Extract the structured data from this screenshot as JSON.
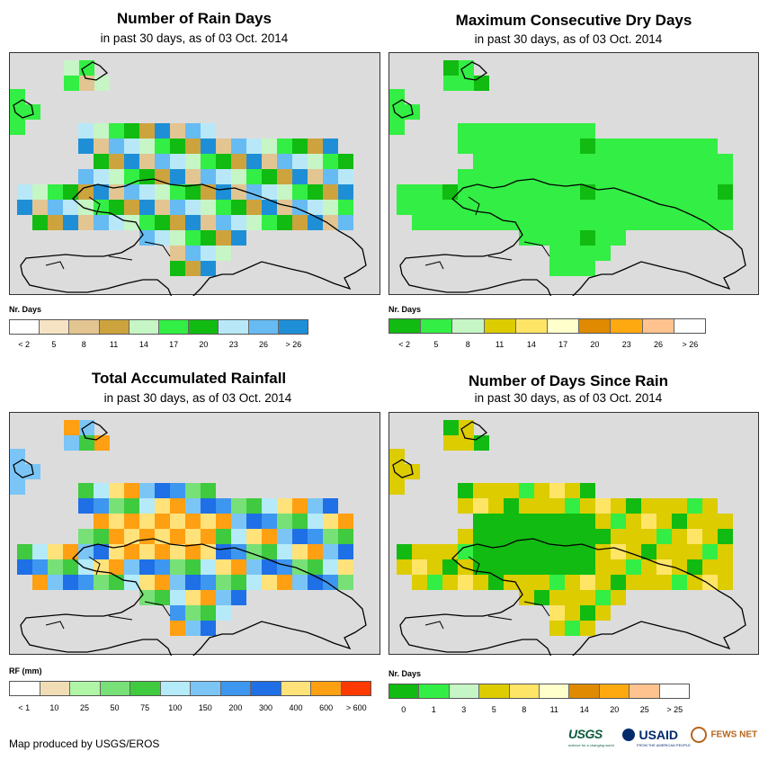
{
  "panels": [
    {
      "title": "Number of Rain Days",
      "subtitle": "in past 30 days, as of 03 Oct. 2014",
      "legend_title": "Nr. Days",
      "colors": [
        "#ffffff",
        "#f5e3c4",
        "#e3c592",
        "#cda33e",
        "#c6f5c6",
        "#33ee44",
        "#11bb11",
        "#b8e8f8",
        "#66bbf2",
        "#1e8fd6"
      ],
      "labels": [
        "< 2",
        "5",
        "8",
        "11",
        "14",
        "17",
        "20",
        "23",
        "26",
        "> 26"
      ]
    },
    {
      "title": "Maximum Consecutive Dry Days",
      "subtitle": "in past 30 days, as of 03 Oct. 2014",
      "legend_title": "Nr. Days",
      "colors": [
        "#11bb11",
        "#33ee44",
        "#c6f5c6",
        "#dccc00",
        "#ffe566",
        "#ffffcc",
        "#df8a00",
        "#ffa911",
        "#ffc38f",
        "#ffffff"
      ],
      "labels": [
        "< 2",
        "5",
        "8",
        "11",
        "14",
        "17",
        "20",
        "23",
        "26",
        "> 26"
      ]
    },
    {
      "title": "Total Accumulated Rainfall",
      "subtitle": "in past 30 days, as of 03 Oct. 2014",
      "legend_title": "RF (mm)",
      "colors": [
        "#ffffff",
        "#f0ddb5",
        "#b0f5a5",
        "#77e077",
        "#3fca3f",
        "#b5eaf8",
        "#7ac5f6",
        "#3d96ef",
        "#1f6fe6",
        "#ffe27a",
        "#ff9f12",
        "#ff3a00"
      ],
      "labels": [
        "< 1",
        "10",
        "25",
        "50",
        "75",
        "100",
        "150",
        "200",
        "300",
        "400",
        "600",
        "> 600"
      ]
    },
    {
      "title": "Number of Days Since Rain",
      "subtitle": "in past 30 days, as of 03 Oct. 2014",
      "legend_title": "Nr. Days",
      "colors": [
        "#11bb11",
        "#33ee44",
        "#c6f5c6",
        "#dccc00",
        "#ffe566",
        "#ffffcc",
        "#df8a00",
        "#ffa911",
        "#ffc38f",
        "#ffffff"
      ],
      "labels": [
        "0",
        "1",
        "3",
        "5",
        "8",
        "11",
        "14",
        "20",
        "25",
        "> 25"
      ]
    }
  ],
  "credit": "Map produced by USGS/EROS",
  "logos": {
    "usgs": "USGS",
    "usgs_tag": "science for a changing world",
    "usaid": "USAID",
    "usaid_tag": "FROM THE AMERICAN PEOPLE",
    "fewsnet": "FEWS NET"
  }
}
